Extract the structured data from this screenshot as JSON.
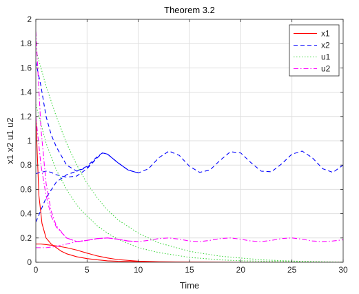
{
  "chart_data": {
    "type": "line",
    "title": "Theorem 3.2",
    "xlabel": "Time",
    "ylabel": "x1 x2 u1 u2",
    "xlim": [
      0,
      30
    ],
    "ylim": [
      0,
      2
    ],
    "xticks": [
      "0",
      "5",
      "10",
      "15",
      "20",
      "25",
      "30"
    ],
    "yticks": [
      "0",
      "0.2",
      "0.4",
      "0.6",
      "0.8",
      "1",
      "1.2",
      "1.4",
      "1.6",
      "1.8",
      "2"
    ],
    "grid": true,
    "legend_position": "top-right",
    "legend": [
      "x1",
      "x2",
      "u1",
      "u2"
    ],
    "series": [
      {
        "name": "x1",
        "color": "#ff0000",
        "dash": "solid",
        "trajectories": [
          {
            "x": [
              0,
              0.3,
              0.6,
              1,
              1.5,
              2,
              2.5,
              3,
              4,
              5,
              6,
              7,
              8,
              10,
              12,
              15,
              20,
              25,
              30
            ],
            "y": [
              1.2,
              0.55,
              0.32,
              0.2,
              0.15,
              0.12,
              0.09,
              0.07,
              0.045,
              0.03,
              0.02,
              0.012,
              0.008,
              0.004,
              0.002,
              0.001,
              0,
              0,
              0
            ]
          },
          {
            "x": [
              0,
              0.5,
              1,
              2,
              3,
              4,
              5,
              6,
              7,
              8,
              10,
              12,
              15,
              20,
              25,
              30
            ],
            "y": [
              0.15,
              0.15,
              0.145,
              0.135,
              0.12,
              0.1,
              0.075,
              0.052,
              0.035,
              0.022,
              0.009,
              0.004,
              0.001,
              0,
              0,
              0
            ]
          }
        ]
      },
      {
        "name": "x2",
        "color": "#0000ff",
        "dash": "dashed",
        "trajectories": [
          {
            "x": [
              0,
              0.5,
              1,
              1.5,
              2,
              3,
              4,
              5,
              6,
              6.5,
              7,
              8,
              9,
              10,
              11,
              12,
              13,
              14,
              15,
              16,
              17,
              18,
              19,
              20,
              21,
              22,
              23,
              24,
              25,
              26,
              27,
              28,
              29,
              30
            ],
            "y": [
              1.65,
              1.45,
              1.2,
              1.05,
              0.95,
              0.8,
              0.75,
              0.78,
              0.86,
              0.9,
              0.89,
              0.82,
              0.76,
              0.735,
              0.77,
              0.86,
              0.915,
              0.88,
              0.79,
              0.74,
              0.76,
              0.84,
              0.91,
              0.9,
              0.82,
              0.75,
              0.745,
              0.81,
              0.89,
              0.915,
              0.86,
              0.77,
              0.74,
              0.8
            ]
          },
          {
            "x": [
              0,
              0.5,
              1,
              2,
              3,
              4,
              5,
              6,
              6.5,
              7,
              8,
              9,
              10
            ],
            "y": [
              0.33,
              0.43,
              0.53,
              0.66,
              0.72,
              0.75,
              0.79,
              0.87,
              0.9,
              0.89,
              0.82,
              0.76,
              0.735
            ]
          },
          {
            "x": [
              0,
              0.5,
              1,
              1.5,
              2,
              3,
              4,
              5,
              6,
              6.5,
              7,
              8,
              9,
              10
            ],
            "y": [
              0.73,
              0.74,
              0.75,
              0.74,
              0.72,
              0.7,
              0.71,
              0.77,
              0.86,
              0.9,
              0.89,
              0.82,
              0.76,
              0.735
            ]
          }
        ]
      },
      {
        "name": "u1",
        "color": "#3dd63d",
        "dash": "dotted",
        "trajectories": [
          {
            "x": [
              0,
              1,
              2,
              3,
              4,
              5,
              6,
              7,
              8,
              10,
              12,
              15,
              18,
              20,
              22,
              25,
              30
            ],
            "y": [
              1.75,
              1.45,
              1.2,
              0.98,
              0.8,
              0.65,
              0.53,
              0.43,
              0.35,
              0.24,
              0.16,
              0.09,
              0.05,
              0.035,
              0.02,
              0.01,
              0
            ]
          },
          {
            "x": [
              0,
              1,
              2,
              3,
              4,
              5,
              6,
              7,
              8,
              10,
              12,
              15,
              18,
              20,
              25,
              30
            ],
            "y": [
              1.3,
              0.98,
              0.76,
              0.6,
              0.47,
              0.38,
              0.3,
              0.24,
              0.19,
              0.12,
              0.08,
              0.04,
              0.02,
              0.012,
              0.004,
              0
            ]
          }
        ]
      },
      {
        "name": "u2",
        "color": "#ff00ff",
        "dash": "dashdot",
        "trajectories": [
          {
            "x": [
              0,
              0.5,
              1,
              1.5,
              2,
              3,
              4,
              5,
              6,
              7,
              8,
              9,
              10,
              11,
              12,
              13,
              14,
              15,
              16,
              17,
              18,
              19,
              20,
              21,
              22,
              23,
              24,
              25,
              26,
              27,
              28,
              29,
              30
            ],
            "y": [
              1.9,
              1.1,
              0.65,
              0.42,
              0.3,
              0.2,
              0.17,
              0.18,
              0.195,
              0.2,
              0.19,
              0.175,
              0.17,
              0.18,
              0.195,
              0.2,
              0.19,
              0.175,
              0.17,
              0.18,
              0.195,
              0.2,
              0.19,
              0.175,
              0.17,
              0.18,
              0.195,
              0.2,
              0.19,
              0.175,
              0.17,
              0.175,
              0.185
            ]
          },
          {
            "x": [
              0,
              0.5,
              1,
              1.5,
              2,
              3,
              4,
              5,
              6,
              7,
              8,
              9,
              10
            ],
            "y": [
              1.2,
              0.8,
              0.55,
              0.38,
              0.29,
              0.2,
              0.17,
              0.18,
              0.195,
              0.2,
              0.19,
              0.175,
              0.17
            ]
          },
          {
            "x": [
              0,
              1,
              2,
              3,
              4,
              5,
              6,
              7,
              8,
              9,
              10
            ],
            "y": [
              0.12,
              0.12,
              0.13,
              0.15,
              0.17,
              0.18,
              0.195,
              0.2,
              0.19,
              0.175,
              0.17
            ]
          }
        ]
      }
    ]
  }
}
